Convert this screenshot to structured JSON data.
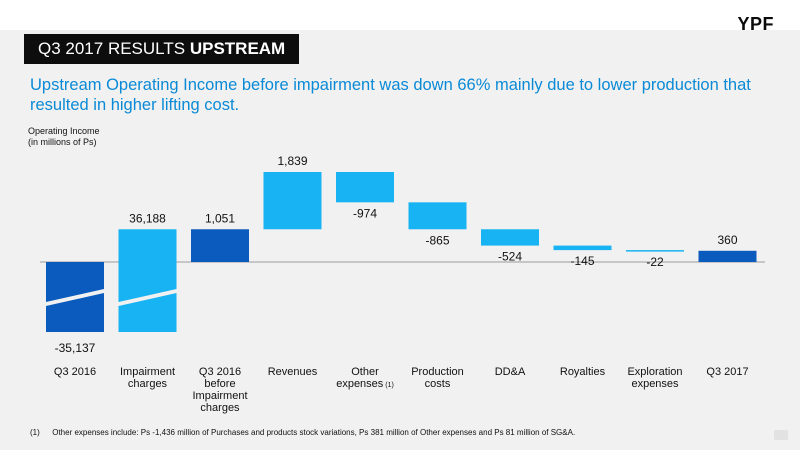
{
  "header": {
    "logo_text": "YPF",
    "title_main": "Q3 2017 RESULTS",
    "title_bold": "UPSTREAM",
    "headline": "Upstream Operating Income before impairment was down 66% mainly due to lower production that resulted in higher lifting cost."
  },
  "footnote": {
    "marker": "(1)",
    "text": "Other expenses include: Ps -1,436  million of Purchases and products stock variations, Ps 381 million of Other expenses and Ps 81 million of SG&A."
  },
  "colors": {
    "dark_blue": "#0a5bbd",
    "light_blue": "#17b3f2",
    "headline_blue": "#0a8ad6"
  },
  "chart_data": {
    "type": "bar",
    "subtype": "waterfall",
    "ylabel_lines": [
      "Operating Income",
      "(in millions of Ps)"
    ],
    "unit": "millions of Ps",
    "axis_break": true,
    "categories": [
      {
        "lines": [
          "Q3 2016"
        ]
      },
      {
        "lines": [
          "Impairment",
          "charges"
        ]
      },
      {
        "lines": [
          "Q3 2016",
          "before",
          "Impairment",
          "charges"
        ]
      },
      {
        "lines": [
          "Revenues"
        ]
      },
      {
        "lines": [
          "Other",
          "expenses"
        ],
        "note": "(1)"
      },
      {
        "lines": [
          "Production",
          "costs"
        ]
      },
      {
        "lines": [
          "DD&A"
        ]
      },
      {
        "lines": [
          "Royalties"
        ]
      },
      {
        "lines": [
          "Exploration",
          "expenses"
        ]
      },
      {
        "lines": [
          "Q3 2017"
        ]
      }
    ],
    "bars": [
      {
        "label": "-35,137",
        "value": -35137,
        "kind": "total",
        "color": "dark",
        "start": 0,
        "end": -35137
      },
      {
        "label": "36,188",
        "value": 36188,
        "kind": "delta",
        "color": "light",
        "start": -35137,
        "end": 1051
      },
      {
        "label": "1,051",
        "value": 1051,
        "kind": "total",
        "color": "dark",
        "start": 0,
        "end": 1051
      },
      {
        "label": "1,839",
        "value": 1839,
        "kind": "delta",
        "color": "light",
        "start": 1051,
        "end": 2890
      },
      {
        "label": "-974",
        "value": -974,
        "kind": "delta",
        "color": "light",
        "start": 2890,
        "end": 1916
      },
      {
        "label": "-865",
        "value": -865,
        "kind": "delta",
        "color": "light",
        "start": 1916,
        "end": 1051
      },
      {
        "label": "-524",
        "value": -524,
        "kind": "delta",
        "color": "light",
        "start": 1051,
        "end": 527
      },
      {
        "label": "-145",
        "value": -145,
        "kind": "delta",
        "color": "light",
        "start": 527,
        "end": 382
      },
      {
        "label": "-22",
        "value": -22,
        "kind": "delta",
        "color": "light",
        "start": 382,
        "end": 360
      },
      {
        "label": "360",
        "value": 360,
        "kind": "total",
        "color": "dark",
        "start": 0,
        "end": 360
      }
    ]
  }
}
